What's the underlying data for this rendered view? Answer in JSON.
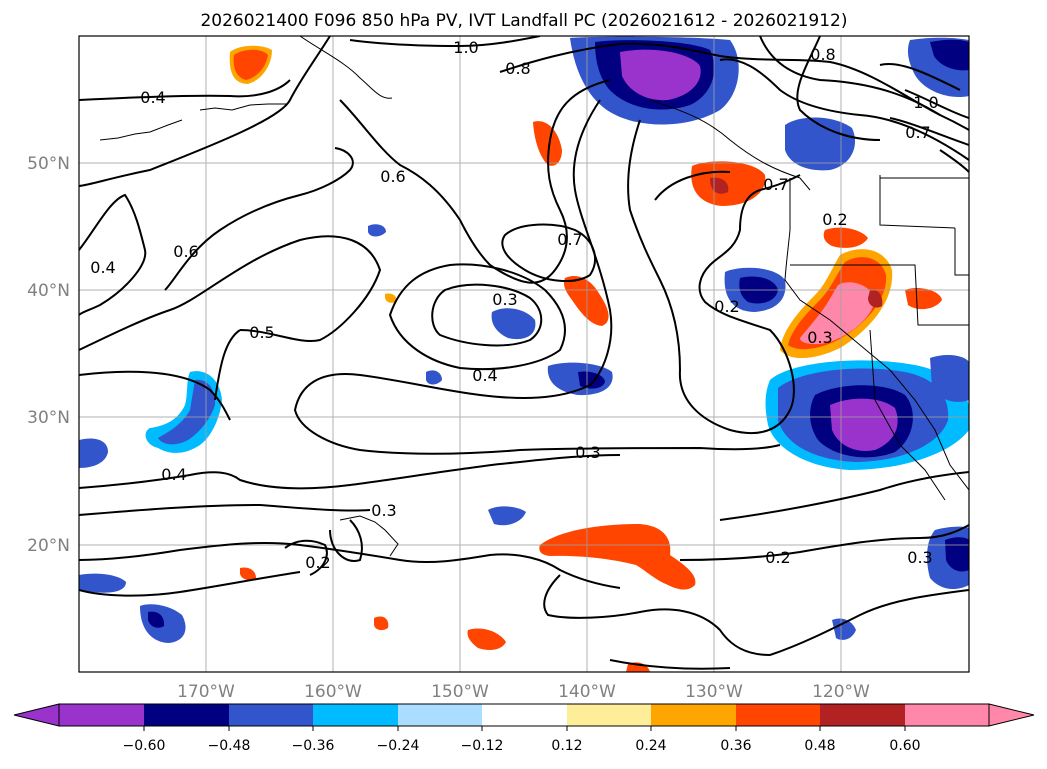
{
  "map": {
    "title": "2026021400 F096 850 hPa PV, IVT Landfall PC (2026021612 - 2026021912)",
    "lat_labels": [
      "50°N",
      "40°N",
      "30°N",
      "20°N"
    ],
    "lon_labels": [
      "170°W",
      "160°W",
      "150°W",
      "140°W",
      "130°W",
      "120°W"
    ],
    "contour_labels": [
      {
        "id": "c1",
        "text": "0.4"
      },
      {
        "id": "c2",
        "text": "1.0"
      },
      {
        "id": "c3",
        "text": "0.8"
      },
      {
        "id": "c4",
        "text": "0.8"
      },
      {
        "id": "c5",
        "text": "1.0"
      },
      {
        "id": "c6",
        "text": "0.7"
      },
      {
        "id": "c7",
        "text": "0.6"
      },
      {
        "id": "c8",
        "text": "0.6"
      },
      {
        "id": "c9",
        "text": "0.4"
      },
      {
        "id": "c10",
        "text": "0.7"
      },
      {
        "id": "c11",
        "text": "0.3"
      },
      {
        "id": "c12",
        "text": "0.5"
      },
      {
        "id": "c13",
        "text": "0.4"
      },
      {
        "id": "c14",
        "text": "0.2"
      },
      {
        "id": "c15",
        "text": "0.3"
      },
      {
        "id": "c16",
        "text": "0.3"
      },
      {
        "id": "c17",
        "text": "0.4"
      },
      {
        "id": "c18",
        "text": "0.3"
      },
      {
        "id": "c19",
        "text": "0.2"
      },
      {
        "id": "c20",
        "text": "0.2"
      },
      {
        "id": "c21",
        "text": "0.3"
      },
      {
        "id": "c22",
        "text": "0.7"
      },
      {
        "id": "c23",
        "text": "0.2"
      }
    ]
  },
  "colorbar": {
    "tick_labels": [
      "−0.60",
      "−0.48",
      "−0.36",
      "−0.24",
      "−0.12",
      "0.12",
      "0.24",
      "0.36",
      "0.48",
      "0.60"
    ],
    "colors": [
      "#9933cc",
      "#000080",
      "#3355cc",
      "#00bbff",
      "#aaddff",
      "#ffffff",
      "#ffee99",
      "#ffa500",
      "#ff4500",
      "#b22222",
      "#ff88aa",
      "#ff88aa"
    ]
  }
}
